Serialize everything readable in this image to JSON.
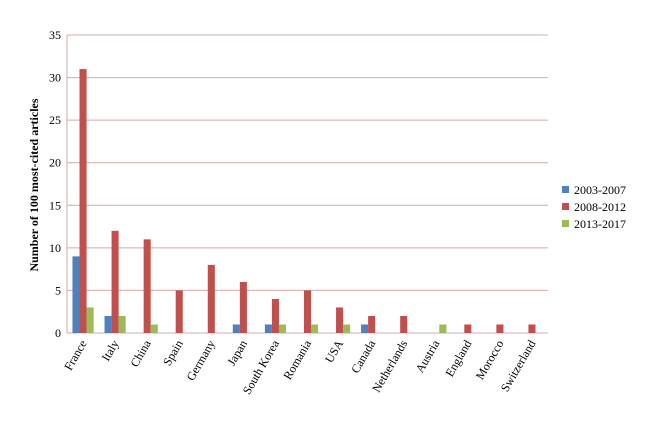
{
  "chart_data": {
    "type": "bar",
    "y_label": "Number of 100 most-cited articles",
    "categories": [
      "France",
      "Italy",
      "China",
      "Spain",
      "Germany",
      "Japan",
      "South Korea",
      "Romania",
      "USA",
      "Canada",
      "Netherlands",
      "Austria",
      "England",
      "Morocco",
      "Switzerland"
    ],
    "series": [
      {
        "name": "2003-2007",
        "color": "#4f81bd",
        "values": [
          9,
          2,
          0,
          0,
          0,
          1,
          1,
          0,
          0,
          1,
          0,
          0,
          0,
          0,
          0
        ]
      },
      {
        "name": "2008-2012",
        "color": "#c0504d",
        "values": [
          31,
          12,
          11,
          5,
          8,
          6,
          4,
          5,
          3,
          2,
          2,
          0,
          1,
          1,
          1
        ]
      },
      {
        "name": "2013-2017",
        "color": "#9bbb59",
        "values": [
          3,
          2,
          1,
          0,
          0,
          0,
          1,
          1,
          1,
          0,
          0,
          1,
          0,
          0,
          0
        ]
      }
    ],
    "ylim": [
      0,
      35
    ],
    "yticks": [
      0,
      5,
      10,
      15,
      20,
      25,
      30,
      35
    ],
    "grid": true,
    "legend": "right"
  }
}
